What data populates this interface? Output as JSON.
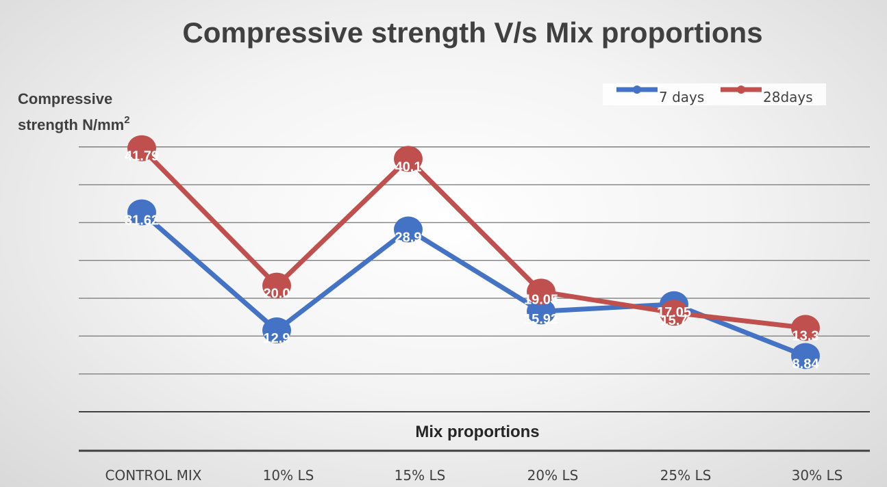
{
  "chart_data": {
    "type": "line",
    "title": "Compressive strength V/s Mix proportions",
    "ylabel": "Compressive strength N/mm",
    "ylabel_line1": "Compressive",
    "ylabel_line2": "strength N/mm",
    "ylabel_superscript": "2",
    "xlabel": "Mix proportions",
    "categories": [
      "CONTROL MIX",
      "10% LS",
      "15% LS",
      "20% LS",
      "25% LS",
      "30% LS"
    ],
    "series": [
      {
        "name": "7 days",
        "color": "#4472C4",
        "values": [
          31.62,
          12.9,
          28.9,
          15.92,
          17.05,
          8.84
        ],
        "labels": [
          "31.62",
          "12.9",
          "28.9",
          "15.92",
          "17.05",
          "8.84"
        ]
      },
      {
        "name": "28days",
        "color": "#C0504D",
        "values": [
          41.79,
          20.0,
          40.1,
          19.05,
          15.7,
          13.3
        ],
        "labels": [
          "41.79",
          "20.0",
          "40.1",
          "19.05",
          "15.7",
          "13.3"
        ]
      }
    ],
    "ylim": [
      0,
      45
    ],
    "grid": true,
    "legend": "top-right",
    "show_data_labels": true
  }
}
